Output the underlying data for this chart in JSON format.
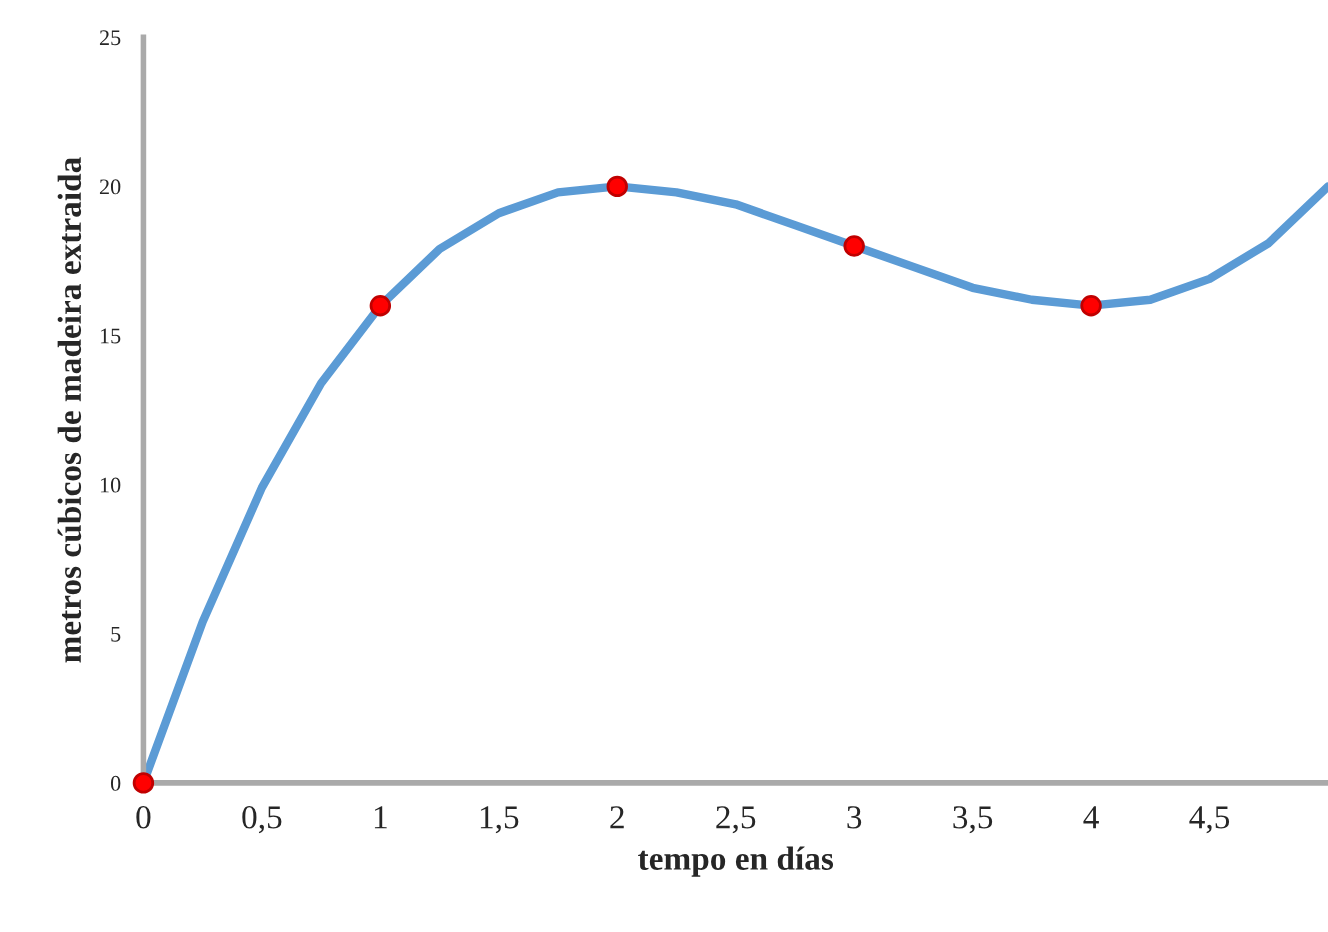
{
  "chart_data": {
    "type": "line",
    "xlabel": "tempo en días",
    "ylabel": "metros cúbicos de madeira extraida",
    "series": [
      {
        "color": "#5b9bd5",
        "marker": "none",
        "x": [
          0,
          0.25,
          0.5,
          0.75,
          1,
          1.25,
          1.5,
          1.75,
          2,
          2.25,
          2.5,
          2.75,
          3,
          3.25,
          3.5,
          3.75,
          4,
          4.25,
          4.5,
          4.75,
          5
        ],
        "values": [
          0,
          5.4,
          9.9,
          13.4,
          16,
          17.9,
          19.1,
          19.8,
          20,
          19.8,
          19.4,
          18.7,
          18,
          17.3,
          16.6,
          16.2,
          16,
          16.2,
          16.9,
          18.1,
          20
        ]
      },
      {
        "type": "scatter",
        "color": "#ff0000",
        "marker": "circle",
        "x": [
          0,
          1,
          2,
          3,
          4
        ],
        "values": [
          0,
          16,
          20,
          18,
          16
        ]
      }
    ],
    "xlim": [
      0,
      5
    ],
    "ylim": [
      0,
      25
    ],
    "xticks": [
      0,
      {
        "value": 0.5,
        "label": "0,5"
      },
      1,
      {
        "value": 1.5,
        "label": "1,5"
      },
      2,
      {
        "value": 2.5,
        "label": "2,5"
      },
      3,
      {
        "value": 3.5,
        "label": "3,5"
      },
      4,
      {
        "value": 4.5,
        "label": "4,5"
      }
    ],
    "yticks": [
      0,
      5,
      10,
      15,
      20,
      25
    ],
    "grid": false,
    "legend": false
  }
}
